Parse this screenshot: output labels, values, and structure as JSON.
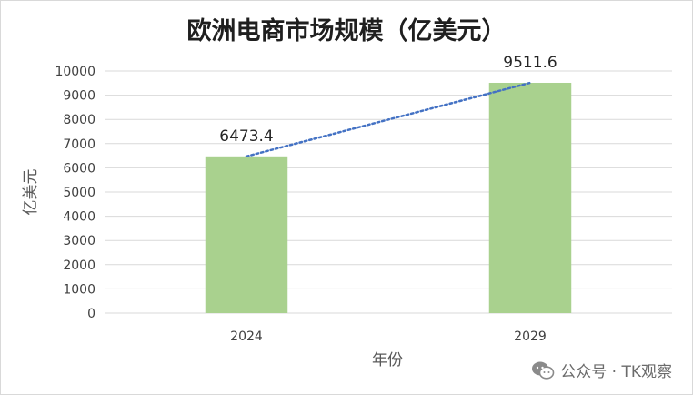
{
  "chart_data": {
    "type": "bar",
    "title": "欧洲电商市场规模（亿美元）",
    "xlabel": "年份",
    "ylabel": "亿美元",
    "categories": [
      "2024",
      "2029"
    ],
    "values": [
      6473.4,
      9511.6
    ],
    "data_labels": [
      "6473.4",
      "9511.6"
    ],
    "ylim": [
      0,
      10000
    ],
    "y_ticks": [
      0,
      1000,
      2000,
      3000,
      4000,
      5000,
      6000,
      7000,
      8000,
      9000,
      10000
    ],
    "grid": true,
    "trendline": "linear",
    "bar_color": "#a9d18e",
    "trendline_color": "#4472c4",
    "grid_color": "#d9d9d9"
  },
  "watermark": {
    "text": "公众号 · TK观察",
    "icon": "wechat-icon"
  }
}
